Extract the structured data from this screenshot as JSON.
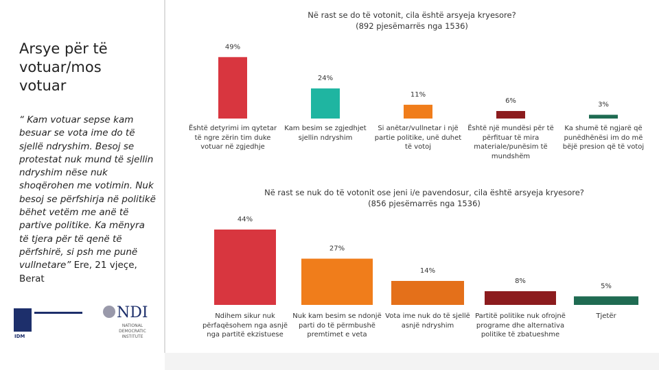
{
  "sidebar": {
    "heading": "Arsye për të votuar/mos votuar",
    "quote": "“ Kam votuar sepse kam besuar se vota ime do të sjellë ndryshim. Besoj se protestat nuk mund të sjellin ndryshim nëse nuk shoqërohen me votimin. Nuk besoj se përfshirja në politikë bëhet vetëm me anë të partive politike. Ka mënyra të tjera për të qenë të përfshirë, si psh me punë vullnetare”",
    "attribution": "Ere, 21 vjeçe, Berat"
  },
  "logos": {
    "idm": "IDM",
    "ndi": "NDI",
    "ndi_full": "NATIONAL DEMOCRATIC INSTITUTE"
  },
  "chart_data": [
    {
      "type": "bar",
      "title": "Në rast se do të votonit, cila është arsyeja kryesore?",
      "subtitle": "(892 pjesëmarrës nga 1536)",
      "categories": [
        "Është detyrimi im qytetar të ngre zërin tim duke votuar në zgjedhje",
        "Kam besim se zgjedhjet sjellin ndryshim",
        "Si anëtar/vullnetar i një partie politike, unë duhet të votoj",
        "Është një mundësi për të përfituar të mira materiale/punësim të mundshëm",
        "Ka shumë të ngjarë që punëdhënësi im do më bëjë presion që të votoj"
      ],
      "values": [
        49,
        24,
        11,
        6,
        3
      ],
      "value_labels": [
        "49%",
        "24%",
        "11%",
        "6%",
        "3%"
      ],
      "colors": [
        "#d8363f",
        "#1fb5a1",
        "#f07d1b",
        "#8c1c1e",
        "#1f6b52"
      ]
    },
    {
      "type": "bar",
      "title": "Në rast se nuk do të votonit ose jeni i/e pavendosur, cila është arsyeja kryesore?",
      "subtitle": "(856 pjesëmarrës nga 1536)",
      "categories": [
        "Ndihem sikur nuk përfaqësohem nga asnjë nga partitë ekzistuese",
        "Nuk kam besim se ndonjë parti do të përmbushë premtimet e veta",
        "Vota ime nuk do të sjellë asnjë ndryshim",
        "Partitë politike nuk ofrojnë programe dhe alternativa politike të zbatueshme",
        "Tjetër"
      ],
      "values": [
        44,
        27,
        14,
        8,
        5
      ],
      "value_labels": [
        "44%",
        "27%",
        "14%",
        "8%",
        "5%"
      ],
      "colors": [
        "#d8363f",
        "#f07d1b",
        "#e4701a",
        "#8c1c1e",
        "#1f6b52"
      ]
    }
  ]
}
